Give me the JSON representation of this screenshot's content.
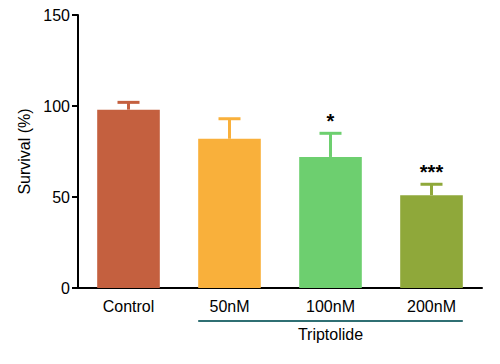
{
  "chart_data": {
    "type": "bar",
    "y_label": "Survival (%)",
    "categories": [
      "Control",
      "50nM",
      "100nM",
      "200nM"
    ],
    "values": [
      98,
      82,
      72,
      51
    ],
    "errors": [
      4,
      11,
      13,
      6
    ],
    "significance": [
      null,
      null,
      "*",
      "***"
    ],
    "colors": [
      "#c4603f",
      "#f9b03b",
      "#6dcf6f",
      "#8fa83a"
    ],
    "group_label": {
      "text": "Triptolide",
      "categories": [
        "50nM",
        "100nM",
        "200nM"
      ]
    },
    "ylim": [
      0,
      150
    ],
    "yticks": [
      0,
      50,
      100,
      150
    ],
    "grid": false
  }
}
